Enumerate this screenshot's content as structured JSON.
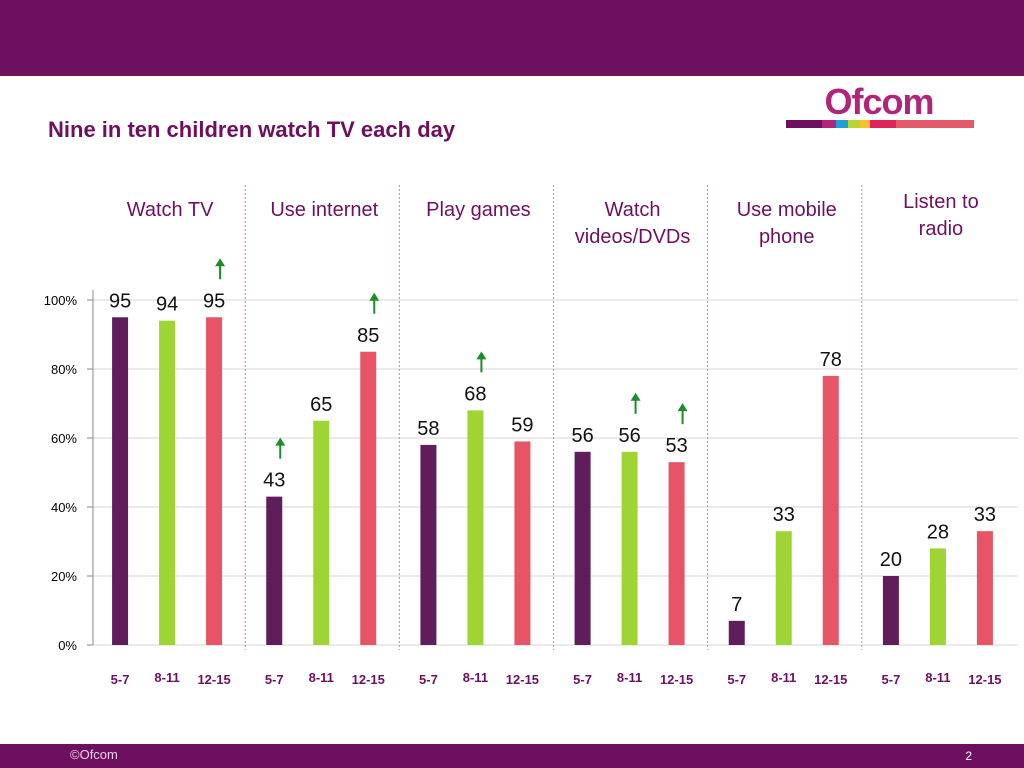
{
  "header": {
    "title": "Nine in ten children watch TV each day"
  },
  "logo": {
    "text": "Ofcom",
    "colors": [
      "#6e1060",
      "#b0257a",
      "#1e9fd8",
      "#b7d432",
      "#f7c229",
      "#e0245b",
      "#e35a6a"
    ]
  },
  "footer": {
    "copyright": "©Ofcom",
    "page_number": "2"
  },
  "colors": {
    "age_5_7": "#5f1d5c",
    "age_8_11": "#9fd435",
    "age_12_15": "#e65465",
    "increase_arrow": "#1d8c2a",
    "axis_text": "#000000",
    "grid": "#d6d6d6",
    "group_label": "#6e1060",
    "separator": "#d08090"
  },
  "chart_data": {
    "type": "bar",
    "ylim": [
      0,
      100
    ],
    "yticks": [
      "0%",
      "20%",
      "40%",
      "60%",
      "80%",
      "100%"
    ],
    "grid": true,
    "groups": [
      {
        "name": "Watch TV",
        "label_lines": [
          "Watch TV"
        ],
        "bars": [
          {
            "age": "5-7",
            "value": 95,
            "up": false
          },
          {
            "age": "8-11",
            "value": 94,
            "up": false
          },
          {
            "age": "12-15",
            "value": 95,
            "up": true
          }
        ]
      },
      {
        "name": "Use internet",
        "label_lines": [
          "Use internet"
        ],
        "bars": [
          {
            "age": "5-7",
            "value": 43,
            "up": true
          },
          {
            "age": "8-11",
            "value": 65,
            "up": false
          },
          {
            "age": "12-15",
            "value": 85,
            "up": true
          }
        ]
      },
      {
        "name": "Play games",
        "label_lines": [
          "Play games"
        ],
        "bars": [
          {
            "age": "5-7",
            "value": 58,
            "up": false
          },
          {
            "age": "8-11",
            "value": 68,
            "up": true
          },
          {
            "age": "12-15",
            "value": 59,
            "up": false
          }
        ]
      },
      {
        "name": "Watch videos/DVDs",
        "label_lines": [
          "Watch",
          "videos/DVDs"
        ],
        "bars": [
          {
            "age": "5-7",
            "value": 56,
            "up": false
          },
          {
            "age": "8-11",
            "value": 56,
            "up": true
          },
          {
            "age": "12-15",
            "value": 53,
            "up": true
          }
        ]
      },
      {
        "name": "Use mobile phone",
        "label_lines": [
          "Use mobile",
          "phone"
        ],
        "bars": [
          {
            "age": "5-7",
            "value": 7,
            "up": false
          },
          {
            "age": "8-11",
            "value": 33,
            "up": false
          },
          {
            "age": "12-15",
            "value": 78,
            "up": false
          }
        ]
      },
      {
        "name": "Listen to radio",
        "label_lines": [
          "Listen to",
          "radio"
        ],
        "bars": [
          {
            "age": "5-7",
            "value": 20,
            "up": false
          },
          {
            "age": "8-11",
            "value": 28,
            "up": false
          },
          {
            "age": "12-15",
            "value": 33,
            "up": false
          }
        ]
      }
    ]
  }
}
